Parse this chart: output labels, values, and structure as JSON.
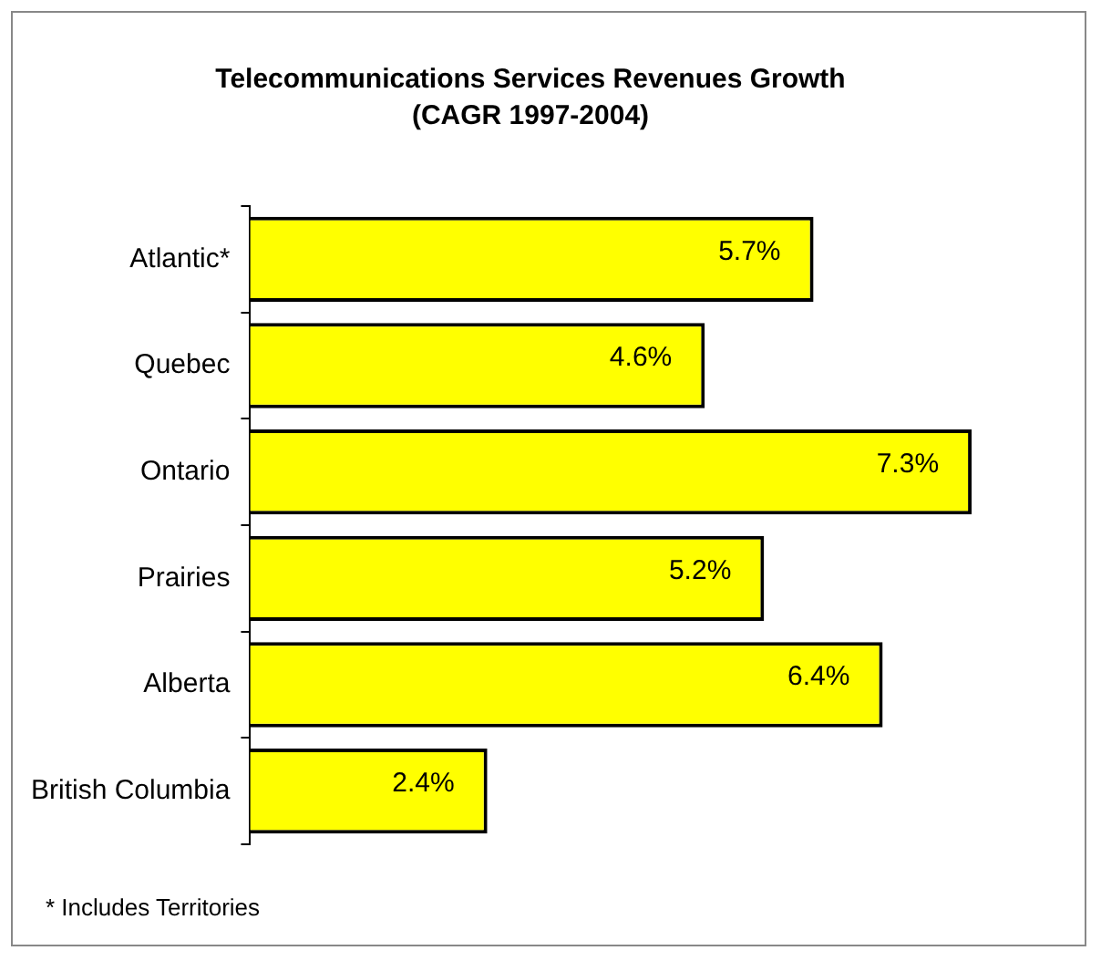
{
  "chart_data": {
    "type": "bar",
    "orientation": "horizontal",
    "title": "Telecommunications Services Revenues Growth",
    "subtitle": "(CAGR 1997-2004)",
    "categories": [
      "Atlantic*",
      "Quebec",
      "Ontario",
      "Prairies",
      "Alberta",
      "British Columbia"
    ],
    "values": [
      5.7,
      4.6,
      7.3,
      5.2,
      6.4,
      2.4
    ],
    "value_labels": [
      "5.7%",
      "4.6%",
      "7.3%",
      "5.2%",
      "6.4%",
      "2.4%"
    ],
    "color": "#ffff00",
    "grid": false,
    "legend": false,
    "annotations": [
      "* Includes Territories"
    ]
  }
}
